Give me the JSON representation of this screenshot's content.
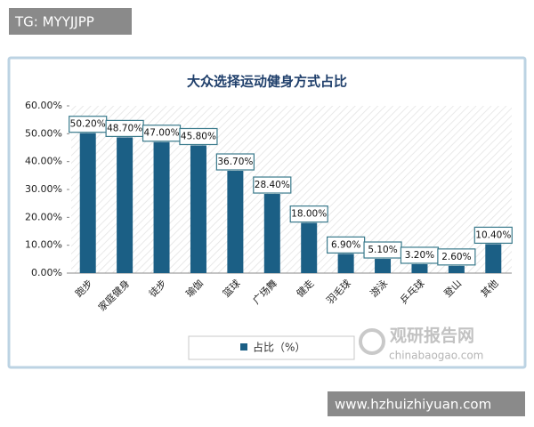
{
  "chart_data": {
    "type": "bar",
    "title": "大众选择运动健身方式占比",
    "categories": [
      "跑步",
      "家庭健身",
      "徒步",
      "瑜伽",
      "篮球",
      "广场舞",
      "健走",
      "羽毛球",
      "游泳",
      "乒乓球",
      "登山",
      "其他"
    ],
    "series": [
      {
        "name": "占比（%）",
        "color": "#1b5f85",
        "values": [
          50.2,
          48.7,
          47.0,
          45.8,
          36.7,
          28.4,
          18.0,
          6.9,
          5.1,
          3.2,
          2.6,
          10.4
        ],
        "value_labels": [
          "50.20%",
          "48.70%",
          "47.00%",
          "45.80%",
          "36.70%",
          "28.40%",
          "18.00%",
          "6.90%",
          "5.10%",
          "3.20%",
          "2.60%",
          "10.40%"
        ]
      }
    ],
    "ylim": [
      0,
      60
    ],
    "yticks": [
      {
        "value": 0,
        "label": "0.00%"
      },
      {
        "value": 10,
        "label": "10.00%"
      },
      {
        "value": 20,
        "label": "20.00%"
      },
      {
        "value": 30,
        "label": "30.00%"
      },
      {
        "value": 40,
        "label": "40.00%"
      },
      {
        "value": 50,
        "label": "50.00%"
      },
      {
        "value": 60,
        "label": "60.00%"
      }
    ],
    "legend": "bottom"
  },
  "tag": "TG: MYYJJPP",
  "site": "www.hzhuizhiyuan.com",
  "watermark": {
    "name": "观研报告网",
    "url": "chinabaogao.com"
  }
}
